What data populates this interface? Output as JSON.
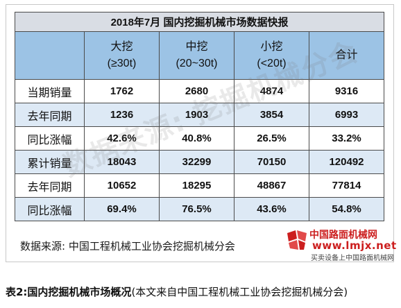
{
  "table": {
    "title": "2018年7月  国内挖掘机械市场数据快报",
    "columns": [
      {
        "line1": "大挖",
        "line2": "(≥30t)"
      },
      {
        "line1": "中挖",
        "line2": "(20~30t)"
      },
      {
        "line1": "小挖",
        "line2": "(<20t)"
      },
      {
        "line1": "合计",
        "line2": ""
      }
    ],
    "rows": [
      {
        "label": "当期销量",
        "values": [
          "1762",
          "2680",
          "4874",
          "9316"
        ]
      },
      {
        "label": "去年同期",
        "values": [
          "1236",
          "1903",
          "3854",
          "6993"
        ]
      },
      {
        "label": "同比涨幅",
        "values": [
          "42.6%",
          "40.8%",
          "26.5%",
          "33.2%"
        ]
      },
      {
        "label": "累计销量",
        "values": [
          "18043",
          "32299",
          "70150",
          "120492"
        ]
      },
      {
        "label": "去年同期",
        "values": [
          "10652",
          "18295",
          "48867",
          "77814"
        ]
      },
      {
        "label": "同比涨幅",
        "values": [
          "69.4%",
          "76.5%",
          "43.6%",
          "54.8%"
        ]
      }
    ]
  },
  "source_note": "数据来源:  中国工程机械工业协会挖掘机械分会",
  "watermark": "数据来源: 挖掘机械分会",
  "logo": {
    "cn": "中国路面机械网",
    "en": "www.lmjx.net",
    "sub": "买卖设备上中国路面机械网",
    "color": "#cc1f1f"
  },
  "caption": {
    "bold": "表2:国内挖掘机械市场概况",
    "normal": "(本文来自中国工程机械工业协会挖掘机械分会)"
  }
}
